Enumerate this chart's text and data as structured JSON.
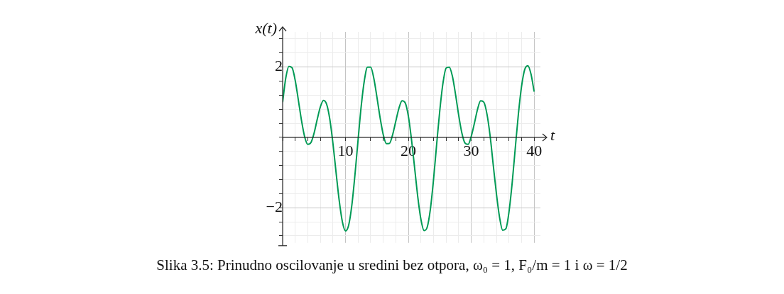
{
  "chart_data": {
    "type": "line",
    "xlabel": "t",
    "ylabel": "x(t)",
    "annotations": [
      "Slika 3.5: Prinudno oscilovanje u sredini bez otpora, ω₀ = 1, F₀/m = 1 i ω = 1/2"
    ],
    "x": [
      0,
      0.5,
      1,
      1.5,
      2,
      2.5,
      3,
      3.5,
      4,
      4.5,
      5,
      5.5,
      6,
      6.5,
      7,
      7.5,
      8,
      8.5,
      9,
      9.5,
      10,
      10.5,
      11,
      11.5,
      12,
      12.5,
      13,
      13.5,
      14,
      14.5,
      15,
      15.5,
      16,
      16.5,
      17,
      17.5,
      18,
      18.5,
      19,
      19.5,
      20,
      20.5,
      21,
      21.5,
      22,
      22.5,
      23,
      23.5,
      24,
      24.5,
      25,
      25.5,
      26,
      26.5,
      27,
      27.5,
      28,
      28.5,
      29,
      29.5,
      30,
      30.5,
      31,
      31.5,
      32,
      32.5,
      33,
      33.5,
      34,
      34.5,
      35,
      35.5,
      36,
      36.5,
      37,
      37.5,
      38,
      38.5,
      39,
      39.5,
      40
    ],
    "series": [
      {
        "color": "#009a55",
        "values": [
          1.0,
          1.69,
          2.02,
          1.98,
          1.62,
          1.06,
          0.48,
          0.02,
          -0.2,
          -0.15,
          0.12,
          0.51,
          0.87,
          1.05,
          0.94,
          0.52,
          -0.17,
          -1.0,
          -1.8,
          -2.4,
          -2.66,
          -2.5,
          -1.94,
          -1.07,
          -0.07,
          0.89,
          1.62,
          2.0,
          2.0,
          1.68,
          1.14,
          0.56,
          0.08,
          -0.18,
          -0.17,
          0.08,
          0.46,
          0.83,
          1.04,
          0.98,
          0.6,
          -0.07,
          -0.88,
          -1.7,
          -2.34,
          -2.65,
          -2.55,
          -2.04,
          -1.2,
          -0.19,
          0.77,
          1.54,
          1.97,
          2.0,
          1.74,
          1.22,
          0.63,
          0.13,
          -0.16,
          -0.2,
          0.03,
          0.4,
          0.8,
          1.04,
          1.0,
          0.66,
          0.04,
          -0.79,
          -1.6,
          -2.27,
          -2.64,
          -2.6,
          -2.12,
          -1.31,
          -0.31,
          0.67,
          1.45,
          1.93,
          2.04,
          1.8,
          1.3
        ]
      }
    ],
    "xlim": [
      0,
      41
    ],
    "ylim": [
      -3,
      3
    ],
    "xticks": [
      {
        "value": 0,
        "label": null
      },
      {
        "value": 2,
        "label": null
      },
      {
        "value": 4,
        "label": null
      },
      {
        "value": 6,
        "label": null
      },
      {
        "value": 8,
        "label": null
      },
      10,
      {
        "value": 12,
        "label": null
      },
      {
        "value": 14,
        "label": null
      },
      {
        "value": 16,
        "label": null
      },
      {
        "value": 18,
        "label": null
      },
      20,
      {
        "value": 22,
        "label": null
      },
      {
        "value": 24,
        "label": null
      },
      {
        "value": 26,
        "label": null
      },
      {
        "value": 28,
        "label": null
      },
      30,
      {
        "value": 32,
        "label": null
      },
      {
        "value": 34,
        "label": null
      },
      {
        "value": 36,
        "label": null
      },
      {
        "value": 38,
        "label": null
      },
      40
    ],
    "yticks": [
      {
        "value": -2.8,
        "label": null
      },
      {
        "value": -2.4,
        "label": null
      },
      {
        "value": -2,
        "label": "−2"
      },
      {
        "value": -1.6,
        "label": null
      },
      {
        "value": -1.2,
        "label": null
      },
      {
        "value": -0.8,
        "label": null
      },
      {
        "value": -0.4,
        "label": null
      },
      {
        "value": 0,
        "label": null
      },
      {
        "value": 0.4,
        "label": null
      },
      {
        "value": 0.8,
        "label": null
      },
      {
        "value": 1.2,
        "label": null
      },
      {
        "value": 1.6,
        "label": null
      },
      2,
      {
        "value": 2.4,
        "label": null
      },
      {
        "value": 2.8,
        "label": null
      }
    ],
    "grid": true,
    "marker": "none",
    "line_style": "solid"
  }
}
